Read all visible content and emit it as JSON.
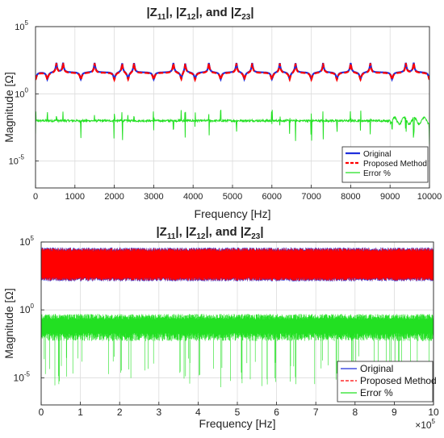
{
  "chart_data": [
    {
      "type": "line",
      "title_parts": [
        "|Z",
        "11",
        "|, |Z",
        "12",
        "|, and |Z",
        "23",
        "|"
      ],
      "xlabel": "Frequency [Hz]",
      "ylabel": "Magnitude [Ω]",
      "xlim": [
        0,
        10000
      ],
      "ylim_log10": [
        -7,
        5
      ],
      "y_scale": "log",
      "grid": true,
      "legend_position": "bottom-right",
      "x_ticks": [
        "0",
        "1000",
        "2000",
        "3000",
        "4000",
        "5000",
        "6000",
        "7000",
        "8000",
        "9000",
        "10000"
      ],
      "y_ticks": [
        {
          "base": "10",
          "exp": "5",
          "pow": 5
        },
        {
          "base": "10",
          "exp": "0",
          "pow": 0
        },
        {
          "base": "10",
          "exp": "-5",
          "pow": -5
        }
      ],
      "resonances_hz": [
        530,
        700,
        1500,
        2200,
        2500,
        3500,
        3800,
        4400,
        5100,
        5500,
        6200,
        6600,
        7300,
        8000,
        8500,
        9400,
        9600
      ],
      "antiresonances_hz": [
        0,
        300,
        1150,
        2000,
        2350,
        3000,
        3700,
        4050,
        4700,
        5300,
        6000,
        6450,
        7000,
        7650,
        8250,
        9050,
        10000
      ],
      "error_baseline_log10": -2.0,
      "series": [
        {
          "name": "Original",
          "color": "#1f2fdc",
          "style": "solid"
        },
        {
          "name": "Proposed Method",
          "color": "#ff0000",
          "style": "dashed"
        },
        {
          "name": "Error %",
          "color": "#22e022",
          "style": "solid"
        }
      ]
    },
    {
      "type": "line",
      "title_parts": [
        "|Z",
        "11",
        "|, |Z",
        "12",
        "|, and |Z",
        "23",
        "|"
      ],
      "xlabel": "Frequency [Hz]",
      "ylabel": "Magnitude [Ω]",
      "xlim": [
        0,
        1000000
      ],
      "ylim_log10": [
        -7,
        5
      ],
      "y_scale": "log",
      "grid": true,
      "legend_position": "bottom-right",
      "x_multiplier": {
        "base": "×10",
        "exp": "5"
      },
      "x_ticks": [
        "0",
        "1",
        "2",
        "3",
        "4",
        "5",
        "6",
        "7",
        "8",
        "9",
        "10"
      ],
      "y_ticks": [
        {
          "base": "10",
          "exp": "5",
          "pow": 5
        },
        {
          "base": "10",
          "exp": "0",
          "pow": 0
        },
        {
          "base": "10",
          "exp": "-5",
          "pow": -5
        }
      ],
      "band_impedance_log10": [
        2.1,
        4.6
      ],
      "band_error_log10": [
        -2.3,
        -0.3
      ],
      "series": [
        {
          "name": "Original",
          "color": "#1f2fdc",
          "style": "solid"
        },
        {
          "name": "Proposed Method",
          "color": "#ff0000",
          "style": "dashed"
        },
        {
          "name": "Error %",
          "color": "#22e022",
          "style": "solid"
        }
      ]
    }
  ]
}
